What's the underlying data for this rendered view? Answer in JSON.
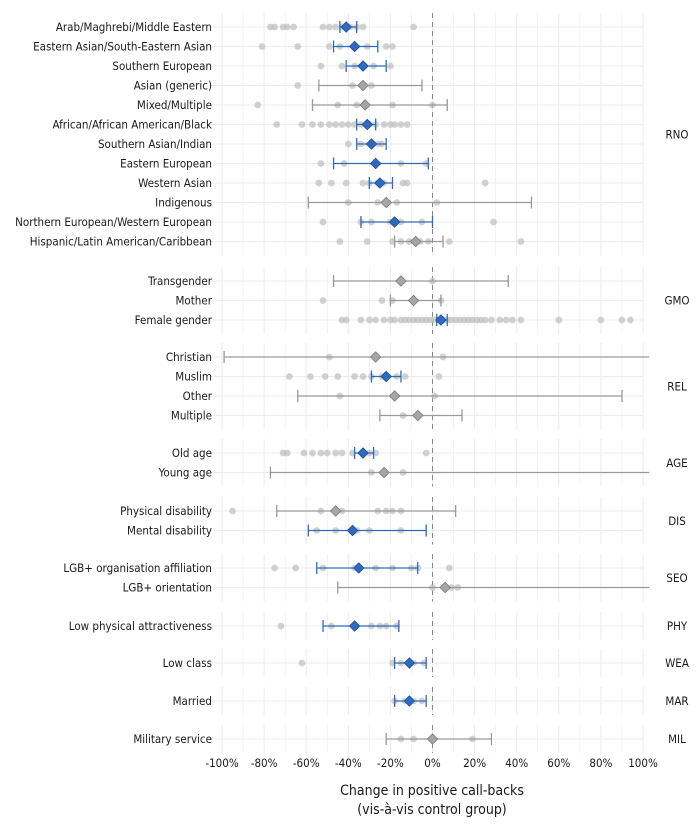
{
  "chart_data": {
    "type": "scatter",
    "xlabel_line1": "Change in positive call-backs",
    "xlabel_line2": "(vis-à-vis control group)",
    "xlim": [
      -100,
      100
    ],
    "xticks": [
      -100,
      -80,
      -60,
      -40,
      -20,
      0,
      20,
      40,
      60,
      80,
      100
    ],
    "tick_suffix": "%",
    "reference_line": 0,
    "colors": {
      "significant": "#2e6bbf",
      "nonsignificant": "#999999",
      "dots": "#bdbdbd",
      "grid": "#ebebeb",
      "ref": "#888888"
    },
    "groups": [
      {
        "id": "RNO",
        "label": "RNO",
        "categories": [
          {
            "name": "Arab/Maghrebi/Middle Eastern",
            "estimate": -41,
            "ci": [
              -44,
              -36
            ],
            "significant": true,
            "studies": [
              -77,
              -75,
              -71,
              -69,
              -66,
              -52,
              -49,
              -46,
              -43,
              -39,
              -36,
              -33,
              -9
            ]
          },
          {
            "name": "Eastern Asian/South-Eastern Asian",
            "estimate": -37,
            "ci": [
              -47,
              -26
            ],
            "significant": true,
            "studies": [
              -81,
              -64,
              -49,
              -44,
              -31,
              -22,
              -19
            ]
          },
          {
            "name": "Southern European",
            "estimate": -33,
            "ci": [
              -41,
              -22
            ],
            "significant": true,
            "studies": [
              -53,
              -43,
              -37,
              -28,
              -20
            ]
          },
          {
            "name": "Asian (generic)",
            "estimate": -33,
            "ci": [
              -54,
              -5
            ],
            "significant": false,
            "studies": [
              -64,
              -38,
              -29
            ]
          },
          {
            "name": "Mixed/Multiple",
            "estimate": -32,
            "ci": [
              -57,
              7
            ],
            "significant": false,
            "studies": [
              -83,
              -45,
              -36,
              -19,
              0
            ]
          },
          {
            "name": "African/African American/Black",
            "estimate": -31,
            "ci": [
              -36,
              -27
            ],
            "significant": true,
            "studies": [
              -74,
              -62,
              -57,
              -53,
              -49,
              -46,
              -43,
              -40,
              -37,
              -34,
              -30,
              -27,
              -23,
              -20,
              -18,
              -15,
              -12
            ]
          },
          {
            "name": "Southern Asian/Indian",
            "estimate": -29,
            "ci": [
              -36,
              -22
            ],
            "significant": true,
            "studies": [
              -40,
              -34,
              -29,
              -26,
              -24
            ]
          },
          {
            "name": "Eastern European",
            "estimate": -27,
            "ci": [
              -47,
              -2
            ],
            "significant": true,
            "studies": [
              -53,
              -42,
              -15,
              -3
            ]
          },
          {
            "name": "Western Asian",
            "estimate": -25,
            "ci": [
              -30,
              -19
            ],
            "significant": true,
            "studies": [
              -54,
              -48,
              -41,
              -33,
              -30,
              -26,
              -23,
              -14,
              -12,
              25
            ]
          },
          {
            "name": "Indigenous",
            "estimate": -22,
            "ci": [
              -59,
              47
            ],
            "significant": false,
            "studies": [
              -40,
              -26,
              -17,
              2
            ]
          },
          {
            "name": "Northern European/Western European",
            "estimate": -18,
            "ci": [
              -34,
              0
            ],
            "significant": true,
            "studies": [
              -52,
              -34,
              -29,
              -20,
              -15,
              -5,
              29
            ]
          },
          {
            "name": "Hispanic/Latin American/Caribbean",
            "estimate": -8,
            "ci": [
              -18,
              5
            ],
            "significant": false,
            "studies": [
              -44,
              -31,
              -19,
              -15,
              -11,
              -6,
              -2,
              8,
              42
            ]
          }
        ]
      },
      {
        "id": "GMO",
        "label": "GMO",
        "categories": [
          {
            "name": "Transgender",
            "estimate": -15,
            "ci": [
              -47,
              36
            ],
            "significant": false,
            "studies": [
              -15,
              0
            ]
          },
          {
            "name": "Mother",
            "estimate": -9,
            "ci": [
              -20,
              4
            ],
            "significant": false,
            "studies": [
              -52,
              -24,
              -19,
              -9,
              4
            ]
          },
          {
            "name": "Female gender",
            "estimate": 4,
            "ci": [
              2,
              7
            ],
            "significant": true,
            "studies": [
              -43,
              -41,
              -34,
              -30,
              -27,
              -23,
              -20,
              -18,
              -15,
              -13,
              -11,
              -9,
              -7,
              -5,
              -3,
              -1,
              1,
              3,
              5,
              7,
              9,
              11,
              13,
              15,
              17,
              19,
              21,
              23,
              25,
              28,
              32,
              35,
              38,
              42,
              60,
              80,
              90,
              94
            ]
          }
        ]
      },
      {
        "id": "REL",
        "label": "REL",
        "categories": [
          {
            "name": "Christian",
            "estimate": -27,
            "ci": [
              -99,
              105
            ],
            "significant": false,
            "studies": [
              -49,
              5
            ]
          },
          {
            "name": "Muslim",
            "estimate": -22,
            "ci": [
              -29,
              -15
            ],
            "significant": true,
            "studies": [
              -68,
              -58,
              -51,
              -45,
              -37,
              -33,
              -29,
              -24,
              -17,
              -13,
              3
            ]
          },
          {
            "name": "Other",
            "estimate": -18,
            "ci": [
              -64,
              90
            ],
            "significant": false,
            "studies": [
              -44,
              1
            ]
          },
          {
            "name": "Multiple",
            "estimate": -7,
            "ci": [
              -25,
              14
            ],
            "significant": false,
            "studies": [
              -14,
              -7
            ]
          }
        ]
      },
      {
        "id": "AGE",
        "label": "AGE",
        "categories": [
          {
            "name": "Old age",
            "estimate": -33,
            "ci": [
              -37,
              -28
            ],
            "significant": true,
            "studies": [
              -71,
              -69,
              -61,
              -57,
              -53,
              -50,
              -46,
              -43,
              -38,
              -33,
              -30,
              -27,
              -3
            ]
          },
          {
            "name": "Young age",
            "estimate": -23,
            "ci": [
              -77,
              105
            ],
            "significant": false,
            "studies": [
              -29,
              -14
            ]
          }
        ]
      },
      {
        "id": "DIS",
        "label": "DIS",
        "categories": [
          {
            "name": "Physical disability",
            "estimate": -46,
            "ci": [
              -74,
              11
            ],
            "significant": false,
            "studies": [
              -95,
              -53,
              -43,
              -26,
              -22,
              -19,
              -15
            ]
          },
          {
            "name": "Mental disability",
            "estimate": -38,
            "ci": [
              -59,
              -3
            ],
            "significant": true,
            "studies": [
              -55,
              -46,
              -36,
              -30,
              -15
            ]
          }
        ]
      },
      {
        "id": "SEO",
        "label": "SEO",
        "categories": [
          {
            "name": "LGB+ organisation affiliation",
            "estimate": -35,
            "ci": [
              -55,
              -7
            ],
            "significant": true,
            "studies": [
              -75,
              -65,
              -52,
              -37,
              -27,
              -19,
              -10,
              -7,
              8
            ]
          },
          {
            "name": "LGB+ orientation",
            "estimate": 6,
            "ci": [
              -45,
              105
            ],
            "significant": false,
            "studies": [
              0,
              9,
              12
            ]
          }
        ]
      },
      {
        "id": "PHY",
        "label": "PHY",
        "categories": [
          {
            "name": "Low physical attractiveness",
            "estimate": -37,
            "ci": [
              -52,
              -16
            ],
            "significant": true,
            "studies": [
              -72,
              -48,
              -29,
              -25,
              -22,
              -17
            ]
          }
        ]
      },
      {
        "id": "WEA",
        "label": "WEA",
        "categories": [
          {
            "name": "Low class",
            "estimate": -11,
            "ci": [
              -18,
              -3
            ],
            "significant": true,
            "studies": [
              -62,
              -19,
              -15,
              -9,
              -4
            ]
          }
        ]
      },
      {
        "id": "MAR",
        "label": "MAR",
        "categories": [
          {
            "name": "Married",
            "estimate": -11,
            "ci": [
              -18,
              -3
            ],
            "significant": true,
            "studies": [
              -18,
              -13,
              -9,
              -5
            ]
          }
        ]
      },
      {
        "id": "MIL",
        "label": "MIL",
        "categories": [
          {
            "name": "Military service",
            "estimate": 0,
            "ci": [
              -22,
              28
            ],
            "significant": false,
            "studies": [
              -15,
              -9,
              0,
              19
            ]
          }
        ]
      }
    ]
  }
}
